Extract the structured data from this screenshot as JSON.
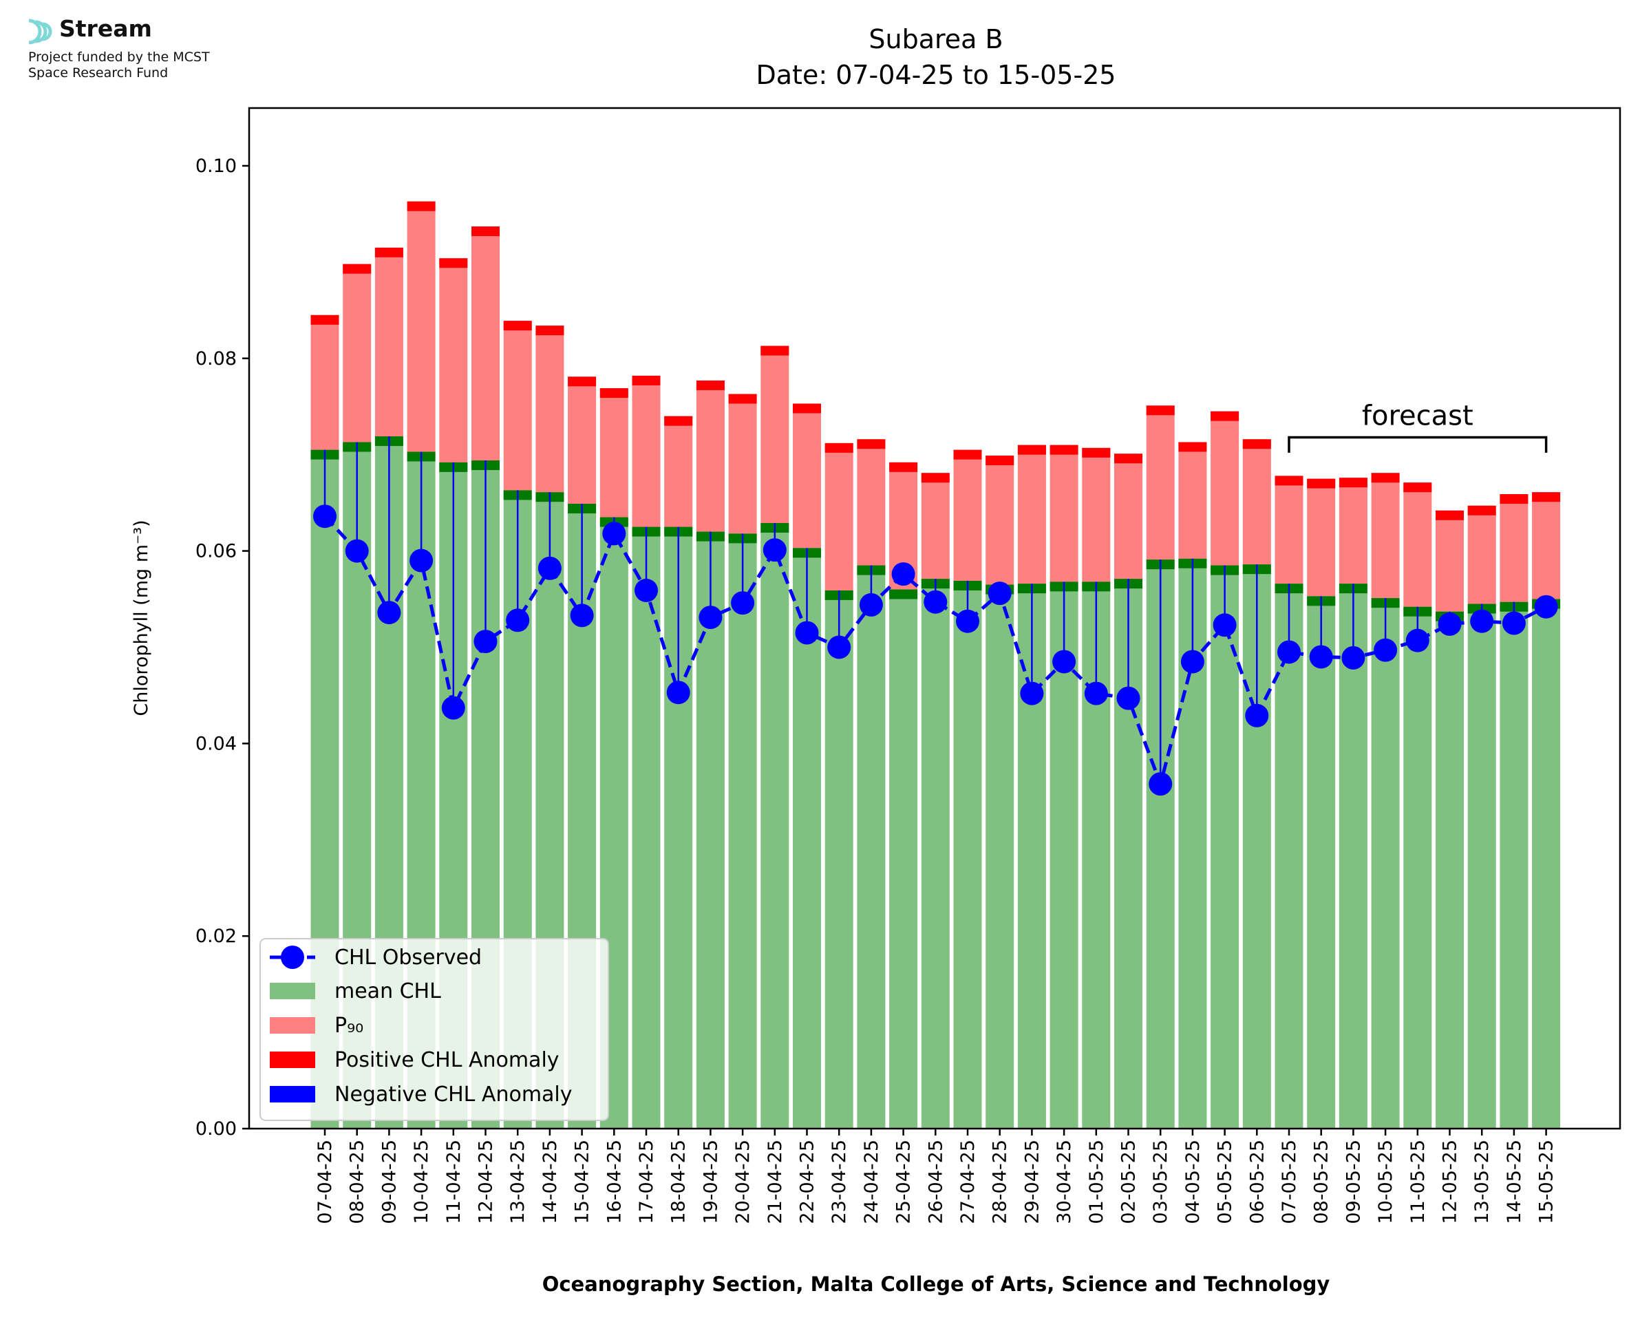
{
  "logo": {
    "name": "Stream",
    "credit_line1": "Project funded by the MCST",
    "credit_line2": "Space Research Fund"
  },
  "colors": {
    "mean": "#80c080",
    "p90": "#ff8080",
    "positive_anomaly": "#ff0000",
    "negative_anomaly": "#0000ff",
    "mean_edge": "#007a00",
    "observed": "#0000ff",
    "logo_accent": "#7fd8d8"
  },
  "chart_data": {
    "type": "bar",
    "title": "Subarea B",
    "subtitle": "Date: 07-04-25 to 15-05-25",
    "xlabel": "Oceanography Section, Malta College of Arts, Science and Technology",
    "ylabel": "Chlorophyll (mg m⁻³)",
    "ylim": [
      0,
      0.106
    ],
    "yticks": [
      "0.00",
      "0.02",
      "0.04",
      "0.06",
      "0.08",
      "0.10"
    ],
    "ytick_values": [
      0,
      0.02,
      0.04,
      0.06,
      0.08,
      0.1
    ],
    "grid": false,
    "legend_position": "bottom-left",
    "legend": [
      "CHL Observed",
      "mean CHL",
      "P₉₀",
      "Positive CHL Anomaly",
      "Negative CHL Anomaly"
    ],
    "annotation": "forecast",
    "forecast_from": "07-05-25",
    "forecast_to": "15-05-25",
    "categories": [
      "07-04-25",
      "08-04-25",
      "09-04-25",
      "10-04-25",
      "11-04-25",
      "12-04-25",
      "13-04-25",
      "14-04-25",
      "15-04-25",
      "16-04-25",
      "17-04-25",
      "18-04-25",
      "19-04-25",
      "20-04-25",
      "21-04-25",
      "22-04-25",
      "23-04-25",
      "24-04-25",
      "25-04-25",
      "26-04-25",
      "27-04-25",
      "28-04-25",
      "29-04-25",
      "30-04-25",
      "01-05-25",
      "02-05-25",
      "03-05-25",
      "04-05-25",
      "05-05-25",
      "06-05-25",
      "07-05-25",
      "08-05-25",
      "09-05-25",
      "10-05-25",
      "11-05-25",
      "12-05-25",
      "13-05-25",
      "14-05-25",
      "15-05-25"
    ],
    "series": [
      {
        "name": "mean CHL",
        "values": [
          0.0705,
          0.0713,
          0.0719,
          0.0703,
          0.0692,
          0.0694,
          0.0663,
          0.0661,
          0.0649,
          0.0635,
          0.0625,
          0.0625,
          0.062,
          0.0618,
          0.0629,
          0.0603,
          0.0559,
          0.0585,
          0.056,
          0.0571,
          0.0569,
          0.0565,
          0.0566,
          0.0568,
          0.0568,
          0.0571,
          0.0591,
          0.0592,
          0.0585,
          0.0586,
          0.0566,
          0.0553,
          0.0566,
          0.0551,
          0.0542,
          0.0537,
          0.0545,
          0.0547,
          0.055
        ]
      },
      {
        "name": "P₉₀",
        "values": [
          0.0845,
          0.0898,
          0.0915,
          0.0963,
          0.0904,
          0.0937,
          0.0839,
          0.0834,
          0.0781,
          0.0769,
          0.0782,
          0.074,
          0.0777,
          0.0763,
          0.0813,
          0.0753,
          0.0712,
          0.0716,
          0.0692,
          0.0681,
          0.0705,
          0.0699,
          0.071,
          0.071,
          0.0707,
          0.0701,
          0.0751,
          0.0713,
          0.0745,
          0.0716,
          0.0678,
          0.0675,
          0.0676,
          0.0681,
          0.0671,
          0.0642,
          0.0647,
          0.0659,
          0.0661
        ]
      },
      {
        "name": "CHL Observed",
        "values": [
          0.0636,
          0.06,
          0.0536,
          0.059,
          0.0437,
          0.0506,
          0.0528,
          0.0582,
          0.0533,
          0.0618,
          0.0559,
          0.0453,
          0.0531,
          0.0546,
          0.0601,
          0.0515,
          0.05,
          0.0544,
          0.0576,
          0.0547,
          0.0527,
          0.0556,
          0.0452,
          0.0485,
          0.0452,
          0.0447,
          0.0358,
          0.0485,
          0.0523,
          0.0429,
          0.0495,
          0.049,
          0.0489,
          0.0497,
          0.0507,
          0.0524,
          0.0527,
          0.0525,
          0.0542
        ]
      }
    ]
  }
}
